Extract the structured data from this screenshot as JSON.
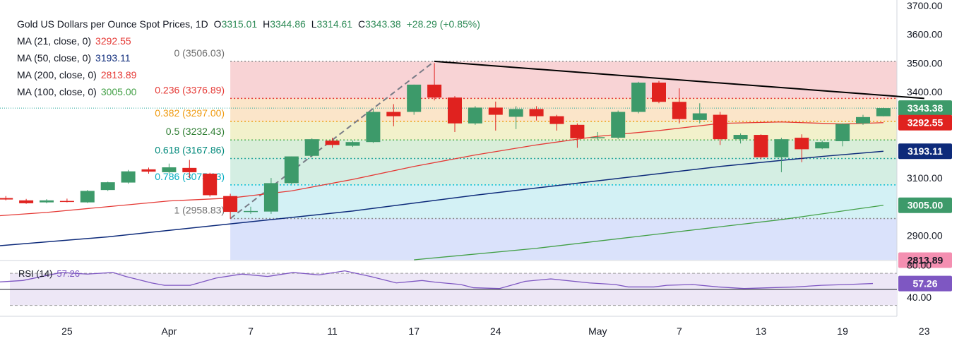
{
  "header": {
    "title": "Gold US Dollars per Ounce Spot Prices, 1D",
    "open_label": "O",
    "open": "3315.01",
    "high_label": "H",
    "high": "3344.86",
    "low_label": "L",
    "low": "3314.61",
    "close_label": "C",
    "close": "3343.38",
    "change": "+28.29 (+0.85%)"
  },
  "moving_averages": [
    {
      "label": "MA (21, close, 0)",
      "value": "3292.55",
      "color": "#e53935"
    },
    {
      "label": "MA (50, close, 0)",
      "value": "3193.11",
      "color": "#0d2a7a"
    },
    {
      "label": "MA (200, close, 0)",
      "value": "2813.89",
      "color": "#f48fb1"
    },
    {
      "label": "MA (100, close, 0)",
      "value": "3005.00",
      "color": "#43a047"
    }
  ],
  "rsi": {
    "label": "RSI (14)",
    "value": "57.26",
    "color": "#7e57c2"
  },
  "colors": {
    "up": "#3d9a6a",
    "down": "#e0221f",
    "trendline": "#000000",
    "axis_text": "#131722",
    "last_price": "#3d9a6a"
  },
  "chart_data": {
    "type": "candlestick",
    "price_axis": {
      "ylim": [
        2815,
        3700
      ],
      "ticks": [
        "3700.00",
        "3600.00",
        "3500.00",
        "3400.00",
        "3300.00",
        "3200.00",
        "3100.00",
        "3000.00",
        "2900.00"
      ]
    },
    "rsi_axis": {
      "ylim": [
        20,
        85
      ],
      "ticks": [
        "80.00",
        "40.00"
      ],
      "bands": [
        70,
        30
      ],
      "midline": 50
    },
    "x_ticks": [
      {
        "label": "25",
        "day": 1
      },
      {
        "label": "Apr",
        "day": 6
      },
      {
        "label": "7",
        "day": 10
      },
      {
        "label": "11",
        "day": 14
      },
      {
        "label": "17",
        "day": 18
      },
      {
        "label": "24",
        "day": 22
      },
      {
        "label": "May",
        "day": 27
      },
      {
        "label": "7",
        "day": 31
      },
      {
        "label": "13",
        "day": 35
      },
      {
        "label": "19",
        "day": 39
      },
      {
        "label": "23",
        "day": 43
      }
    ],
    "candles": [
      {
        "d": -2,
        "o": 3030,
        "h": 3037,
        "l": 3022,
        "c": 3025
      },
      {
        "d": -1,
        "o": 3022,
        "h": 3027,
        "l": 3010,
        "c": 3012
      },
      {
        "d": 0,
        "o": 3015,
        "h": 3026,
        "l": 3012,
        "c": 3022
      },
      {
        "d": 1,
        "o": 3020,
        "h": 3028,
        "l": 3015,
        "c": 3018
      },
      {
        "d": 2,
        "o": 3015,
        "h": 3058,
        "l": 3013,
        "c": 3055
      },
      {
        "d": 3,
        "o": 3058,
        "h": 3087,
        "l": 3055,
        "c": 3085
      },
      {
        "d": 4,
        "o": 3084,
        "h": 3128,
        "l": 3080,
        "c": 3123
      },
      {
        "d": 5,
        "o": 3130,
        "h": 3136,
        "l": 3115,
        "c": 3122
      },
      {
        "d": 6,
        "o": 3120,
        "h": 3150,
        "l": 3115,
        "c": 3137
      },
      {
        "d": 7,
        "o": 3135,
        "h": 3163,
        "l": 3100,
        "c": 3120
      },
      {
        "d": 8,
        "o": 3115,
        "h": 3118,
        "l": 3035,
        "c": 3040
      },
      {
        "d": 9,
        "o": 3037,
        "h": 3045,
        "l": 2958,
        "c": 2982
      },
      {
        "d": 10,
        "o": 2982,
        "h": 3000,
        "l": 2975,
        "c": 2985
      },
      {
        "d": 11,
        "o": 2983,
        "h": 3100,
        "l": 2975,
        "c": 3082
      },
      {
        "d": 12,
        "o": 3082,
        "h": 3175,
        "l": 3078,
        "c": 3175
      },
      {
        "d": 13,
        "o": 3177,
        "h": 3238,
        "l": 3173,
        "c": 3235
      },
      {
        "d": 14,
        "o": 3230,
        "h": 3240,
        "l": 3205,
        "c": 3215
      },
      {
        "d": 15,
        "o": 3212,
        "h": 3230,
        "l": 3208,
        "c": 3225
      },
      {
        "d": 16,
        "o": 3225,
        "h": 3340,
        "l": 3222,
        "c": 3330
      },
      {
        "d": 17,
        "o": 3330,
        "h": 3357,
        "l": 3280,
        "c": 3315
      },
      {
        "d": 18,
        "o": 3330,
        "h": 3425,
        "l": 3320,
        "c": 3425
      },
      {
        "d": 19,
        "o": 3425,
        "h": 3500,
        "l": 3370,
        "c": 3380
      },
      {
        "d": 20,
        "o": 3380,
        "h": 3385,
        "l": 3260,
        "c": 3290
      },
      {
        "d": 21,
        "o": 3290,
        "h": 3350,
        "l": 3285,
        "c": 3345
      },
      {
        "d": 22,
        "o": 3345,
        "h": 3366,
        "l": 3265,
        "c": 3320
      },
      {
        "d": 23,
        "o": 3313,
        "h": 3350,
        "l": 3270,
        "c": 3340
      },
      {
        "d": 24,
        "o": 3340,
        "h": 3350,
        "l": 3300,
        "c": 3315
      },
      {
        "d": 25,
        "o": 3315,
        "h": 3320,
        "l": 3265,
        "c": 3288
      },
      {
        "d": 26,
        "o": 3285,
        "h": 3290,
        "l": 3205,
        "c": 3238
      },
      {
        "d": 27,
        "o": 3240,
        "h": 3260,
        "l": 3232,
        "c": 3242
      },
      {
        "d": 28,
        "o": 3240,
        "h": 3335,
        "l": 3235,
        "c": 3330
      },
      {
        "d": 29,
        "o": 3330,
        "h": 3435,
        "l": 3325,
        "c": 3432
      },
      {
        "d": 30,
        "o": 3432,
        "h": 3438,
        "l": 3360,
        "c": 3365
      },
      {
        "d": 31,
        "o": 3365,
        "h": 3412,
        "l": 3290,
        "c": 3305
      },
      {
        "d": 32,
        "o": 3302,
        "h": 3360,
        "l": 3290,
        "c": 3325
      },
      {
        "d": 33,
        "o": 3320,
        "h": 3330,
        "l": 3215,
        "c": 3235
      },
      {
        "d": 34,
        "o": 3235,
        "h": 3255,
        "l": 3220,
        "c": 3250
      },
      {
        "d": 35,
        "o": 3250,
        "h": 3252,
        "l": 3165,
        "c": 3172
      },
      {
        "d": 36,
        "o": 3172,
        "h": 3240,
        "l": 3120,
        "c": 3235
      },
      {
        "d": 37,
        "o": 3240,
        "h": 3252,
        "l": 3155,
        "c": 3200
      },
      {
        "d": 38,
        "o": 3203,
        "h": 3230,
        "l": 3200,
        "c": 3225
      },
      {
        "d": 39,
        "o": 3228,
        "h": 3290,
        "l": 3210,
        "c": 3288
      },
      {
        "d": 40,
        "o": 3290,
        "h": 3320,
        "l": 3285,
        "c": 3312
      },
      {
        "d": 41,
        "o": 3315.01,
        "h": 3344.86,
        "l": 3314.61,
        "c": 3343.38
      }
    ],
    "ma21": [
      [
        -3,
        2965
      ],
      [
        0,
        2980
      ],
      [
        3,
        3000
      ],
      [
        6,
        3020
      ],
      [
        9,
        3030
      ],
      [
        12,
        3055
      ],
      [
        15,
        3095
      ],
      [
        18,
        3140
      ],
      [
        21,
        3180
      ],
      [
        24,
        3215
      ],
      [
        27,
        3245
      ],
      [
        30,
        3265
      ],
      [
        33,
        3290
      ],
      [
        36,
        3295
      ],
      [
        39,
        3288
      ],
      [
        41,
        3292.55
      ]
    ],
    "ma50": [
      [
        -3,
        2860
      ],
      [
        3,
        2895
      ],
      [
        9,
        2940
      ],
      [
        15,
        2985
      ],
      [
        21,
        3040
      ],
      [
        27,
        3090
      ],
      [
        33,
        3140
      ],
      [
        38,
        3175
      ],
      [
        41,
        3193.11
      ]
    ],
    "ma100": [
      [
        18,
        2815
      ],
      [
        24,
        2855
      ],
      [
        30,
        2905
      ],
      [
        36,
        2955
      ],
      [
        41,
        3005
      ]
    ],
    "fibonacci": {
      "levels": [
        {
          "label": "0 (3506.03)",
          "value": 3506.03,
          "fill": "#f8d3d5",
          "line": "#8c8c8c",
          "text": "#6e6e6e"
        },
        {
          "label": "0.236 (3376.89)",
          "value": 3376.89,
          "fill": "#fbe5c9",
          "line": "#e53935",
          "text": "#e53935"
        },
        {
          "label": "0.382 (3297.00)",
          "value": 3297.0,
          "fill": "#f2f1cb",
          "line": "#ef9b12",
          "text": "#ef9b12"
        },
        {
          "label": "0.5 (3232.43)",
          "value": 3232.43,
          "fill": "#d9eed9",
          "line": "#4caf50",
          "text": "#2e7d32"
        },
        {
          "label": "0.618 (3167.86)",
          "value": 3167.86,
          "fill": "#d4eee3",
          "line": "#26a69a",
          "text": "#00897b"
        },
        {
          "label": "0.786 (3075.93)",
          "value": 3075.93,
          "fill": "#d3f1f5",
          "line": "#00bcd4",
          "text": "#00acc1"
        },
        {
          "label": "1 (2958.83)",
          "value": 2958.83,
          "fill": "#e3e3e3",
          "line": "#8c8c8c",
          "text": "#6e6e6e"
        }
      ],
      "below_fill": "#dae2fb",
      "start_day": 9
    },
    "fib_anchor": {
      "from": [
        9,
        2958.83
      ],
      "to": [
        19,
        3506.03
      ]
    },
    "trendline": {
      "from": [
        19,
        3506
      ],
      "to": [
        43,
        3377
      ]
    },
    "rsi_series": [
      [
        -3,
        57
      ],
      [
        1,
        61
      ],
      [
        4,
        71
      ],
      [
        6,
        69
      ],
      [
        8,
        71
      ],
      [
        9,
        66
      ],
      [
        11,
        58
      ],
      [
        12,
        55
      ],
      [
        14,
        55
      ],
      [
        16,
        64
      ],
      [
        18,
        69
      ],
      [
        20,
        66
      ],
      [
        22,
        71
      ],
      [
        24,
        68
      ],
      [
        26,
        73
      ],
      [
        28,
        66
      ],
      [
        30,
        58
      ],
      [
        32,
        61
      ],
      [
        33,
        59
      ],
      [
        35,
        56
      ],
      [
        36,
        52
      ],
      [
        38,
        51
      ],
      [
        40,
        60
      ],
      [
        42,
        63
      ],
      [
        45,
        58
      ],
      [
        47,
        56
      ],
      [
        48,
        53
      ],
      [
        50,
        53
      ],
      [
        51,
        55
      ],
      [
        53,
        56
      ],
      [
        55,
        53
      ],
      [
        57,
        51
      ],
      [
        59,
        52
      ],
      [
        61,
        53
      ],
      [
        63,
        55
      ],
      [
        65,
        56
      ],
      [
        67,
        57.26
      ]
    ],
    "axis_labels": [
      {
        "text": "3343.38",
        "value": 3343.38,
        "bg": "#3d9a6a",
        "fg": "#ffffff"
      },
      {
        "text": "3292.55",
        "value": 3292.55,
        "bg": "#e0221f",
        "fg": "#ffffff"
      },
      {
        "text": "3193.11",
        "value": 3193.11,
        "bg": "#0d2a7a",
        "fg": "#ffffff"
      },
      {
        "text": "3005.00",
        "value": 3005.0,
        "bg": "#3d9a6a",
        "fg": "#ffffff"
      },
      {
        "text": "2813.89",
        "value": 2813.89,
        "bg": "#f48fb1",
        "fg": "#131722"
      }
    ]
  }
}
